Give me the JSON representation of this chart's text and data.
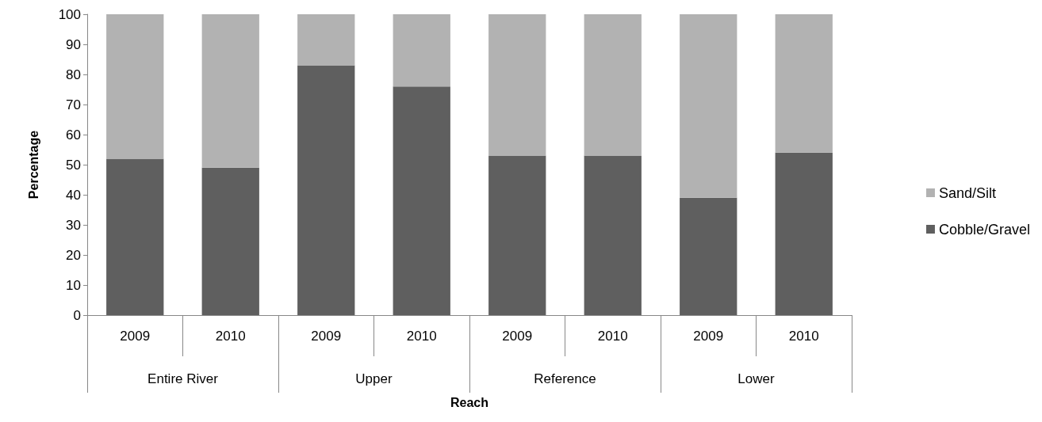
{
  "chart_data": {
    "type": "bar",
    "stacked": true,
    "xlabel": "Reach",
    "ylabel": "Percentage",
    "categories": [
      "2009",
      "2010",
      "2009",
      "2010",
      "2009",
      "2010",
      "2009",
      "2010"
    ],
    "annotations": [
      "Entire River",
      "Upper",
      "Reference",
      "Lower"
    ],
    "series": [
      {
        "name": "Cobble/Gravel",
        "color": "#5f5f5f",
        "values": [
          52,
          49,
          83,
          76,
          53,
          53,
          39,
          54
        ]
      },
      {
        "name": "Sand/Silt",
        "color": "#b2b2b2",
        "values": [
          48,
          51,
          17,
          24,
          47,
          47,
          61,
          46
        ]
      }
    ],
    "ylim": [
      0,
      100
    ],
    "yticks": [
      0,
      10,
      20,
      30,
      40,
      50,
      60,
      70,
      80,
      90,
      100
    ],
    "grid": false,
    "legend": "right"
  }
}
